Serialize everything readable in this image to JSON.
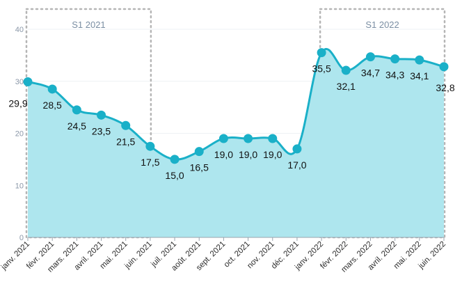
{
  "chart_data": {
    "type": "area",
    "categories": [
      "janv. 2021",
      "févr. 2021",
      "mars. 2021",
      "avril. 2021",
      "mai. 2021",
      "juin. 2021",
      "juil. 2021",
      "août. 2021",
      "sept. 2021",
      "oct. 2021",
      "nov. 2021",
      "déc. 2021",
      "janv. 2022",
      "févr. 2022",
      "mars. 2022",
      "avril. 2022",
      "mai. 2022",
      "juin. 2022"
    ],
    "series": [
      {
        "values": [
          29.9,
          28.5,
          24.5,
          23.5,
          21.5,
          17.5,
          15.0,
          16.5,
          19.0,
          19.0,
          19.0,
          17.0,
          35.5,
          32.1,
          34.7,
          34.3,
          34.1,
          32.8
        ],
        "labels": [
          "29,9",
          "28,5",
          "24,5",
          "23,5",
          "21,5",
          "17,5",
          "15,0",
          "16,5",
          "19,0",
          "19,0",
          "19,0",
          "17,0",
          "35,5",
          "32,1",
          "34,7",
          "34,3",
          "34,1",
          "32,8"
        ]
      }
    ],
    "ylim": [
      0,
      40
    ],
    "yticks": [
      "0",
      "10",
      "20",
      "30",
      "40"
    ],
    "grid": true,
    "bands": [
      {
        "label": "S1 2021",
        "from": 0,
        "to": 5
      },
      {
        "label": "S1 2022",
        "from": 12,
        "to": 17
      }
    ],
    "colors": {
      "line": "#1ab0c8",
      "area": "#aee6ee",
      "marker": "#1ab0c8",
      "band": "#b5b5b5",
      "grid": "#eef1f4"
    }
  }
}
